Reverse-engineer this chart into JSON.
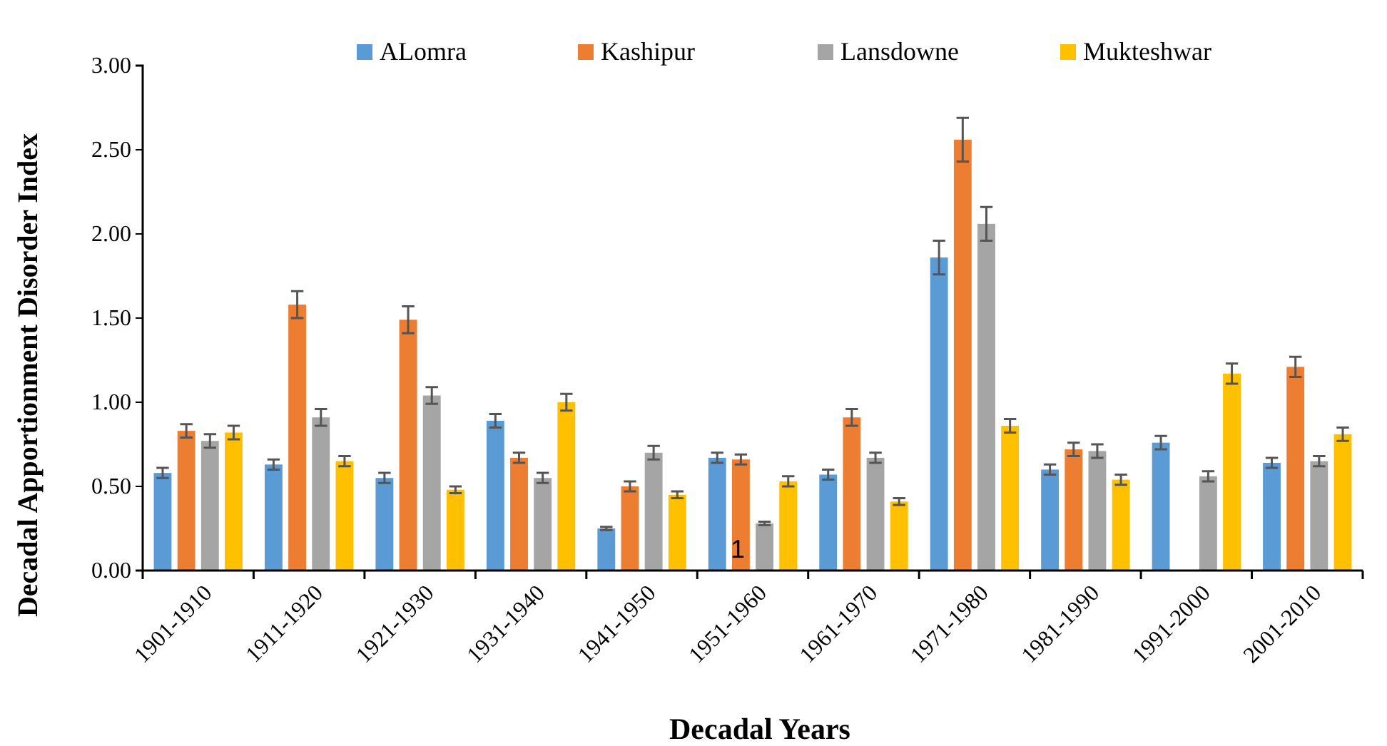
{
  "chart_data": {
    "type": "bar",
    "xlabel": "Decadal  Years",
    "ylabel": "Decadal Apportionment Disorder Index",
    "categories": [
      "1901-1910",
      "1911-1920",
      "1921-1930",
      "1931-1940",
      "1941-1950",
      "1951-1960",
      "1961-1970",
      "1971-1980",
      "1981-1990",
      "1991-2000",
      "2001-2010"
    ],
    "series": [
      {
        "name": "ALomra",
        "color": "#5b9bd5",
        "values": [
          0.58,
          0.63,
          0.55,
          0.89,
          0.25,
          0.67,
          0.57,
          1.86,
          0.6,
          0.76,
          0.64
        ],
        "errors": [
          0.03,
          0.03,
          0.03,
          0.04,
          0.01,
          0.03,
          0.03,
          0.1,
          0.03,
          0.04,
          0.03
        ]
      },
      {
        "name": "Kashipur",
        "color": "#ed7d31",
        "values": [
          0.83,
          1.58,
          1.49,
          0.67,
          0.5,
          0.66,
          0.91,
          2.56,
          0.72,
          0,
          1.21
        ],
        "errors": [
          0.04,
          0.08,
          0.08,
          0.03,
          0.03,
          0.03,
          0.05,
          0.13,
          0.04,
          null,
          0.06
        ]
      },
      {
        "name": "Lansdowne",
        "color": "#a5a5a5",
        "values": [
          0.77,
          0.91,
          1.04,
          0.55,
          0.7,
          0.28,
          0.67,
          2.06,
          0.71,
          0.56,
          0.65
        ],
        "errors": [
          0.04,
          0.05,
          0.05,
          0.03,
          0.04,
          0.01,
          0.03,
          0.1,
          0.04,
          0.03,
          0.03
        ]
      },
      {
        "name": "Mukteshwar",
        "color": "#ffc000",
        "values": [
          0.82,
          0.65,
          0.48,
          1.0,
          0.45,
          0.53,
          0.41,
          0.86,
          0.54,
          1.17,
          0.81
        ],
        "errors": [
          0.04,
          0.03,
          0.02,
          0.05,
          0.02,
          0.03,
          0.02,
          0.04,
          0.03,
          0.06,
          0.04
        ]
      }
    ],
    "ylim": [
      0,
      3
    ],
    "yticks": [
      {
        "value": 0,
        "label": "0.00"
      },
      {
        "value": 0.5,
        "label": "0.50"
      },
      {
        "value": 1,
        "label": "1.00"
      },
      {
        "value": 1.5,
        "label": "1.50"
      },
      {
        "value": 2,
        "label": "2.00"
      },
      {
        "value": 2.5,
        "label": "2.50"
      },
      {
        "value": 3,
        "label": "3.00"
      }
    ],
    "annotations": [
      "1"
    ],
    "grid": false,
    "legend": "top"
  }
}
